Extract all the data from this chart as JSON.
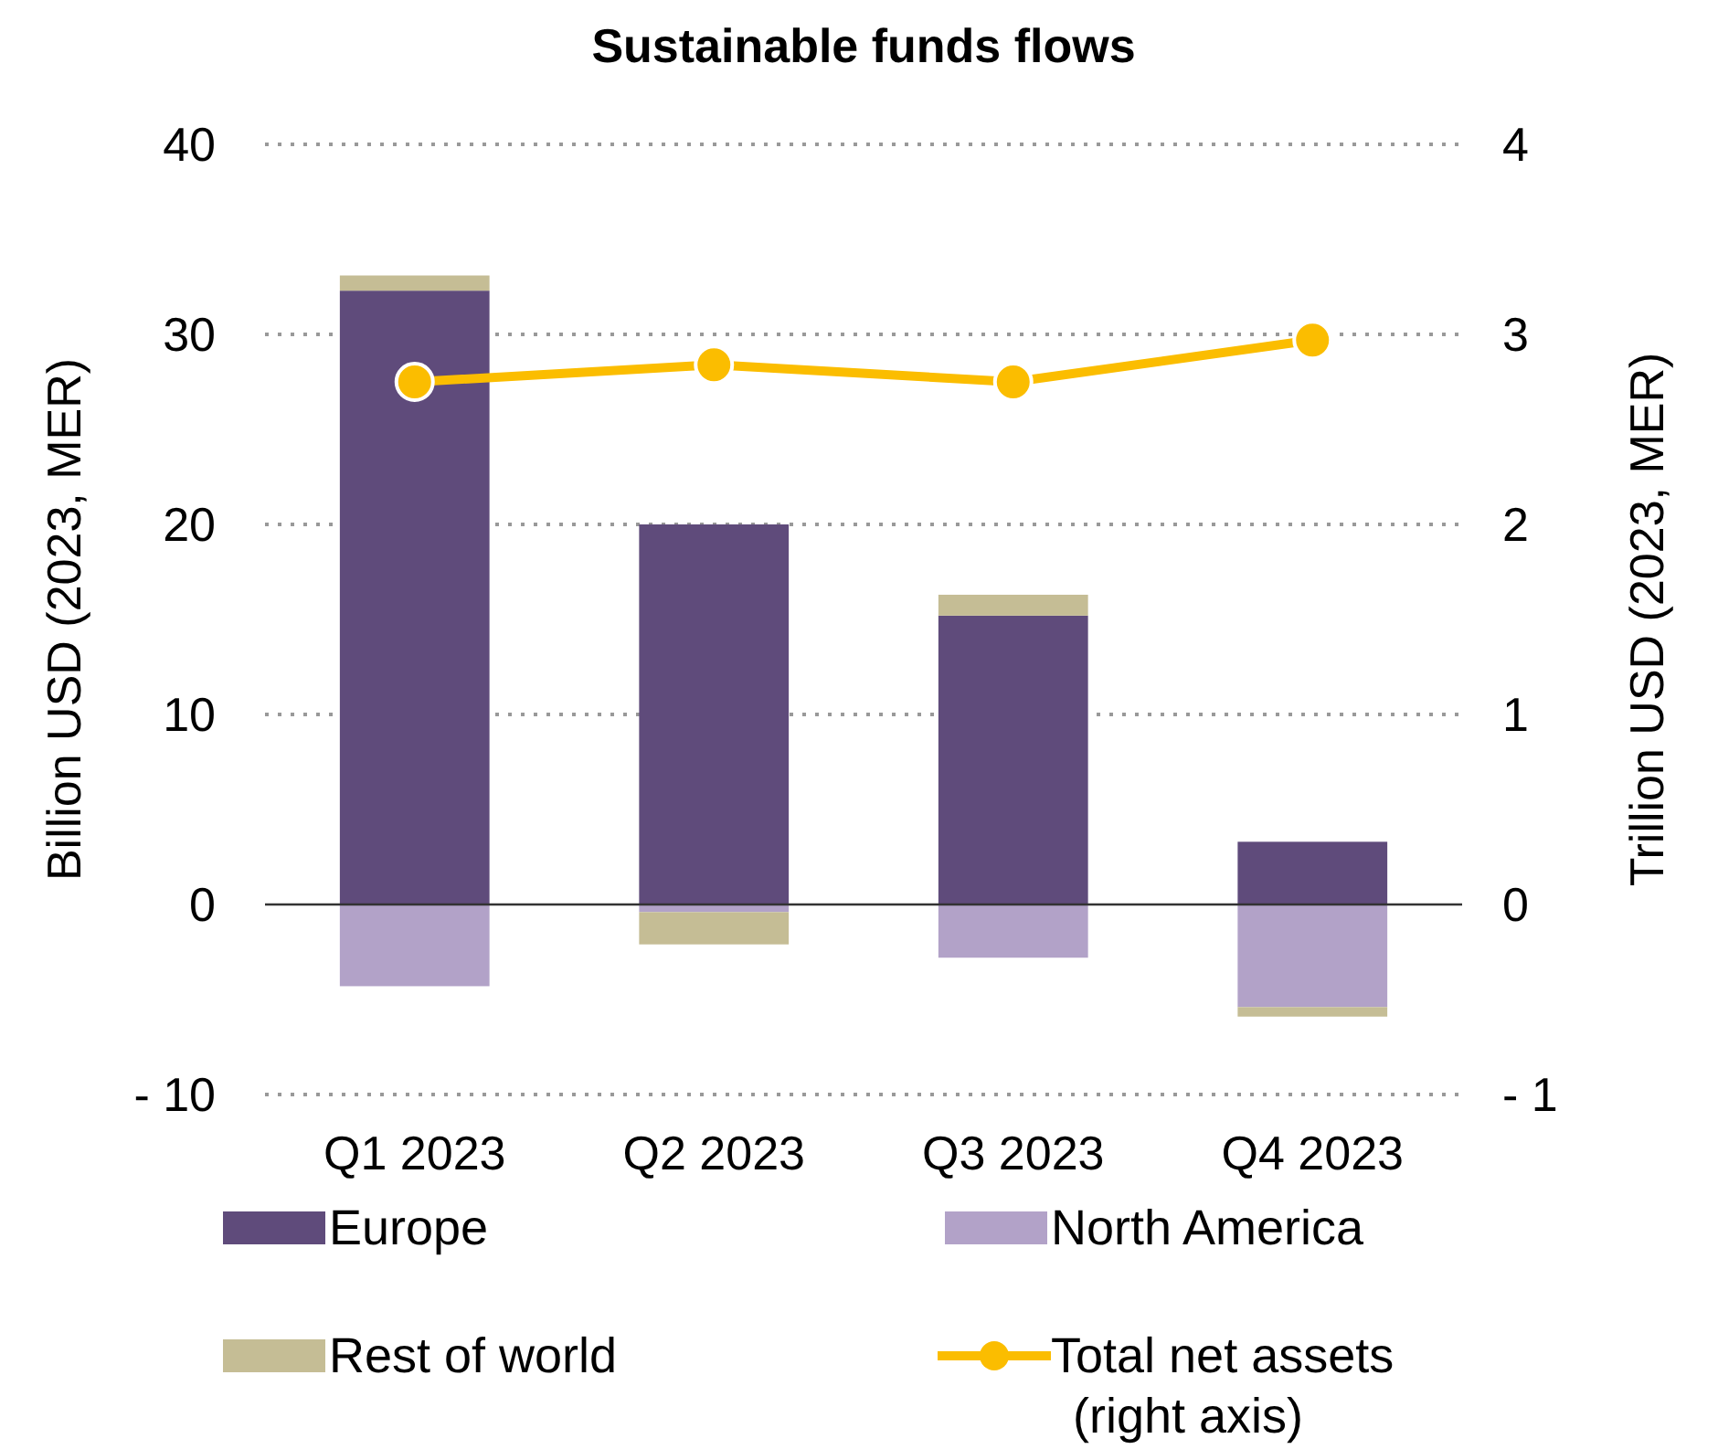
{
  "chart_data": {
    "type": "bar",
    "title": "Sustainable funds flows",
    "ylabel": "Billion USD (2023, MER)",
    "y2label": "Trillion USD (2023, MER)",
    "categories": [
      "Q1 2023",
      "Q2 2023",
      "Q3 2023",
      "Q4 2023"
    ],
    "stacked": true,
    "ylim": [
      -10,
      40
    ],
    "yticks": [
      {
        "value": -10,
        "label": "- 10"
      },
      0,
      10,
      20,
      30,
      40
    ],
    "y2lim": [
      -1,
      4
    ],
    "y2ticks": [
      {
        "value": -1,
        "label": "- 1"
      },
      0,
      1,
      2,
      3,
      4
    ],
    "grid": "y",
    "legend": "bottom",
    "marker": "circle",
    "series": [
      {
        "name": "Europe",
        "color": "#5f4b7b",
        "values": [
          32.3,
          20.0,
          15.2,
          3.3
        ]
      },
      {
        "name": "North America",
        "color": "#b2a2c8",
        "values": [
          -4.3,
          -0.4,
          -2.8,
          -5.4
        ]
      },
      {
        "name": "Rest of world",
        "color": "#c5bd95",
        "values": [
          0.8,
          -1.7,
          1.1,
          -0.5
        ]
      },
      {
        "name": "Total net assets\n(right axis)",
        "type": "line",
        "axis": "y2",
        "color": "#fbbd00",
        "values": [
          2.75,
          2.84,
          2.75,
          2.97
        ]
      }
    ]
  }
}
